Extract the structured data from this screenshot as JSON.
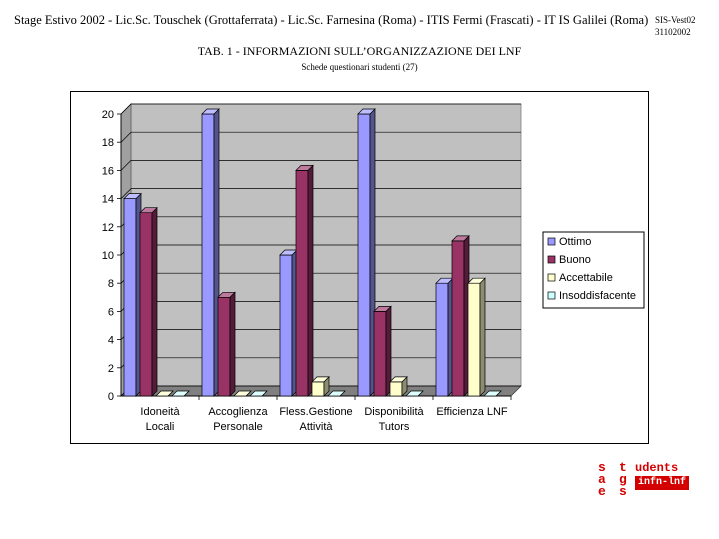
{
  "header": {
    "text": "Stage Estivo 2002 - Lic.Sc. Touschek (Grottaferrata) - Lic.Sc. Farnesina (Roma) - ITIS Fermi (Frascati) - IT IS Galilei (Roma)",
    "code_line1": "SIS-Vest02",
    "code_line2": "31102002"
  },
  "chart_data": {
    "type": "bar",
    "title": "TAB. 1 - INFORMAZIONI SULL’ORGANIZZAZIONE DEI LNF",
    "subtitle": "Schede questionari studenti  (27)",
    "categories": [
      [
        "Idoneità",
        "Locali"
      ],
      [
        "Accoglienza",
        "Personale"
      ],
      [
        "Fless.Gestione",
        "Attività"
      ],
      [
        "Disponibilità",
        "Tutors"
      ],
      [
        "Efficienza LNF"
      ]
    ],
    "series": [
      {
        "name": "Ottimo",
        "values": [
          14,
          20,
          10,
          20,
          8
        ],
        "color": "#9999ff"
      },
      {
        "name": "Buono",
        "values": [
          13,
          7,
          16,
          6,
          11
        ],
        "color": "#993366"
      },
      {
        "name": "Accettabile",
        "values": [
          0,
          0,
          1,
          1,
          8
        ],
        "color": "#ffffcc"
      },
      {
        "name": "Insoddisfacente",
        "values": [
          0,
          0,
          0,
          0,
          0
        ],
        "color": "#ccffff"
      }
    ],
    "ylim": [
      0,
      20
    ],
    "yticks": [
      "0",
      "2",
      "4",
      "6",
      "8",
      "10",
      "12",
      "14",
      "16",
      "18",
      "20"
    ],
    "grid": true,
    "legend": "right",
    "xlabel": "",
    "ylabel": ""
  },
  "logo": {
    "col1": "sae",
    "col2": "tgs",
    "word_top": "udents",
    "word_box": "infn-lnf"
  }
}
